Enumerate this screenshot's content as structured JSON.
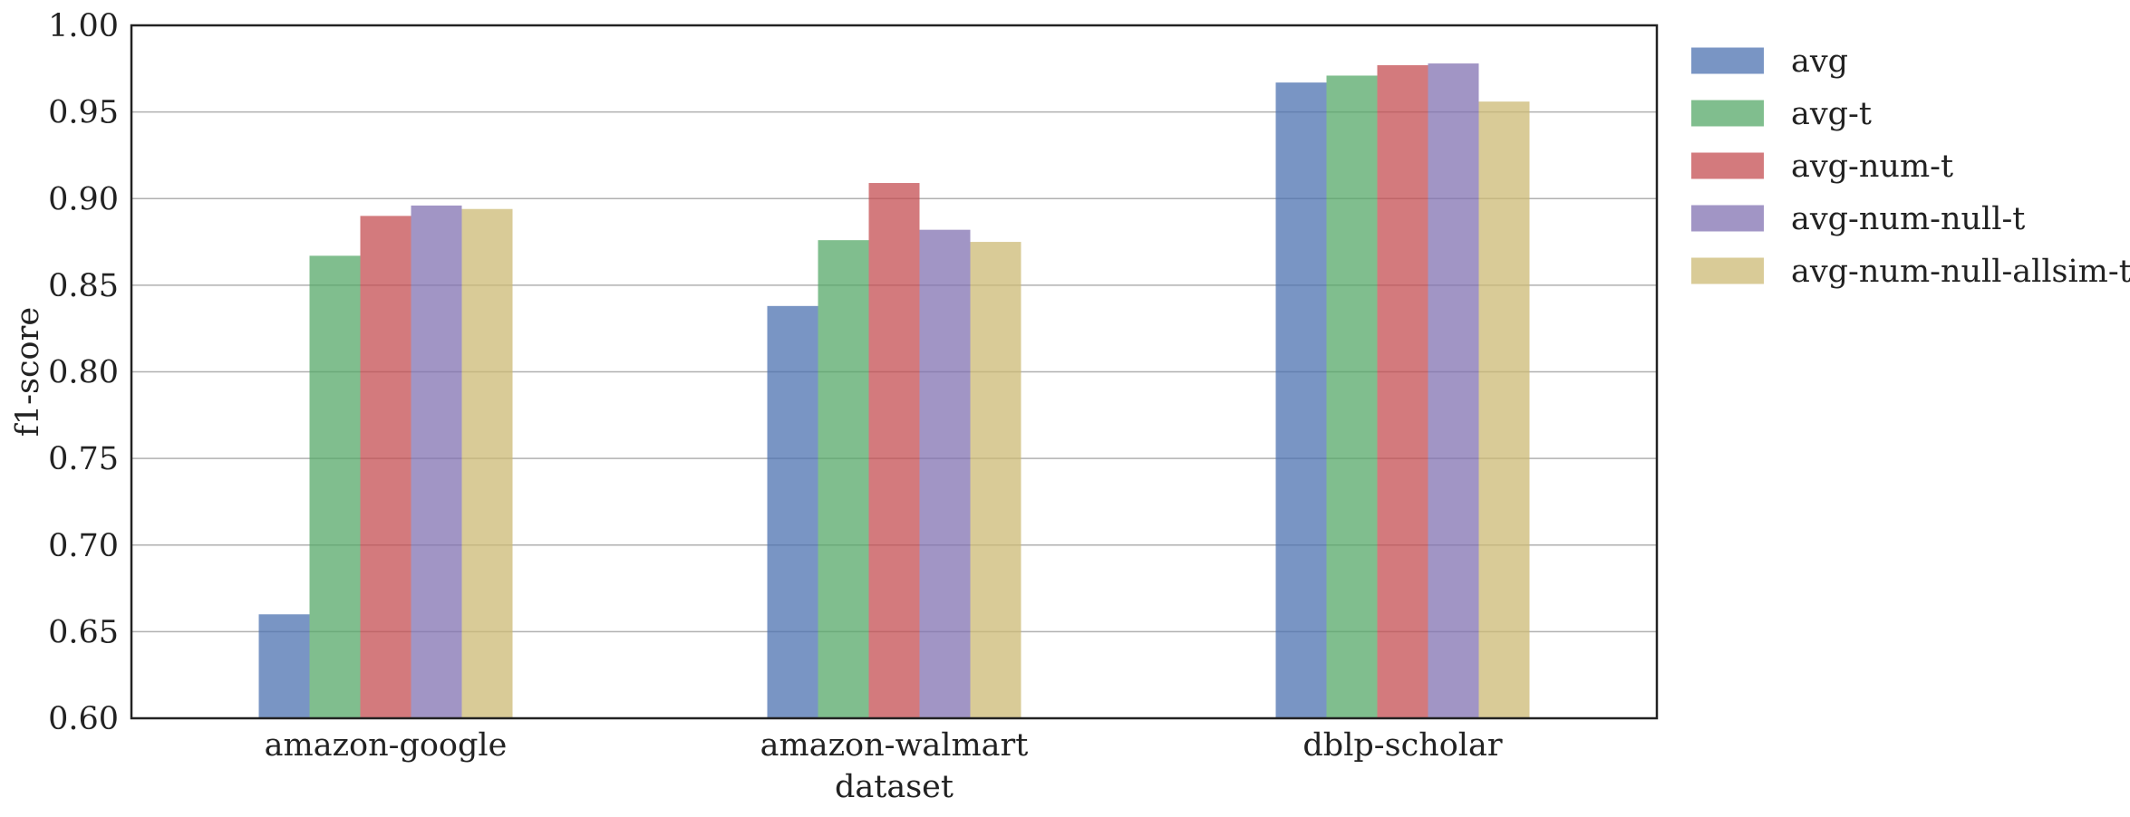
{
  "chart_data": {
    "type": "bar",
    "title": "",
    "xlabel": "dataset",
    "ylabel": "f1-score",
    "ylim": [
      0.6,
      1.0
    ],
    "yticks": [
      0.6,
      0.65,
      0.7,
      0.75,
      0.8,
      0.85,
      0.9,
      0.95,
      1.0
    ],
    "ytick_labels": [
      "0.60",
      "0.65",
      "0.70",
      "0.75",
      "0.80",
      "0.85",
      "0.90",
      "0.95",
      "1.00"
    ],
    "grid": "horizontal",
    "legend_position": "outside-right",
    "categories": [
      "amazon-google",
      "amazon-walmart",
      "dblp-scholar"
    ],
    "series": [
      {
        "name": "avg",
        "color": "#4c72b0",
        "values": [
          0.66,
          0.838,
          0.967
        ]
      },
      {
        "name": "avg-t",
        "color": "#55a868",
        "values": [
          0.867,
          0.876,
          0.971
        ]
      },
      {
        "name": "avg-num-t",
        "color": "#c44e52",
        "values": [
          0.89,
          0.909,
          0.977
        ]
      },
      {
        "name": "avg-num-null-t",
        "color": "#8172b2",
        "values": [
          0.896,
          0.882,
          0.978
        ]
      },
      {
        "name": "avg-num-null-allsim-t",
        "color": "#ccb974",
        "values": [
          0.894,
          0.875,
          0.956
        ]
      }
    ]
  }
}
